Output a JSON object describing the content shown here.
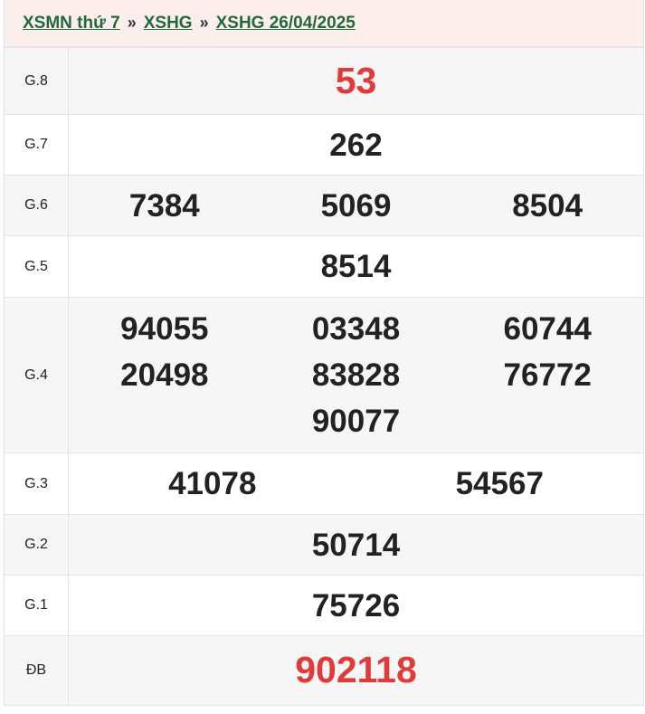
{
  "breadcrumb": [
    "XSMN thứ 7",
    "XSHG",
    "XSHG 26/04/2025"
  ],
  "breadcrumb_separator": "»",
  "accent_color": "#e03a3a",
  "link_color": "#1f6b3a",
  "prizes": [
    {
      "label": "G.8",
      "numbers": [
        "53"
      ],
      "highlight": true
    },
    {
      "label": "G.7",
      "numbers": [
        "262"
      ]
    },
    {
      "label": "G.6",
      "numbers": [
        "7384",
        "5069",
        "8504"
      ]
    },
    {
      "label": "G.5",
      "numbers": [
        "8514"
      ]
    },
    {
      "label": "G.4",
      "numbers": [
        "94055",
        "03348",
        "60744",
        "20498",
        "83828",
        "76772",
        "90077"
      ]
    },
    {
      "label": "G.3",
      "numbers": [
        "41078",
        "54567"
      ]
    },
    {
      "label": "G.2",
      "numbers": [
        "50714"
      ]
    },
    {
      "label": "G.1",
      "numbers": [
        "75726"
      ]
    },
    {
      "label": "ĐB",
      "numbers": [
        "902118"
      ],
      "highlight": true
    }
  ]
}
